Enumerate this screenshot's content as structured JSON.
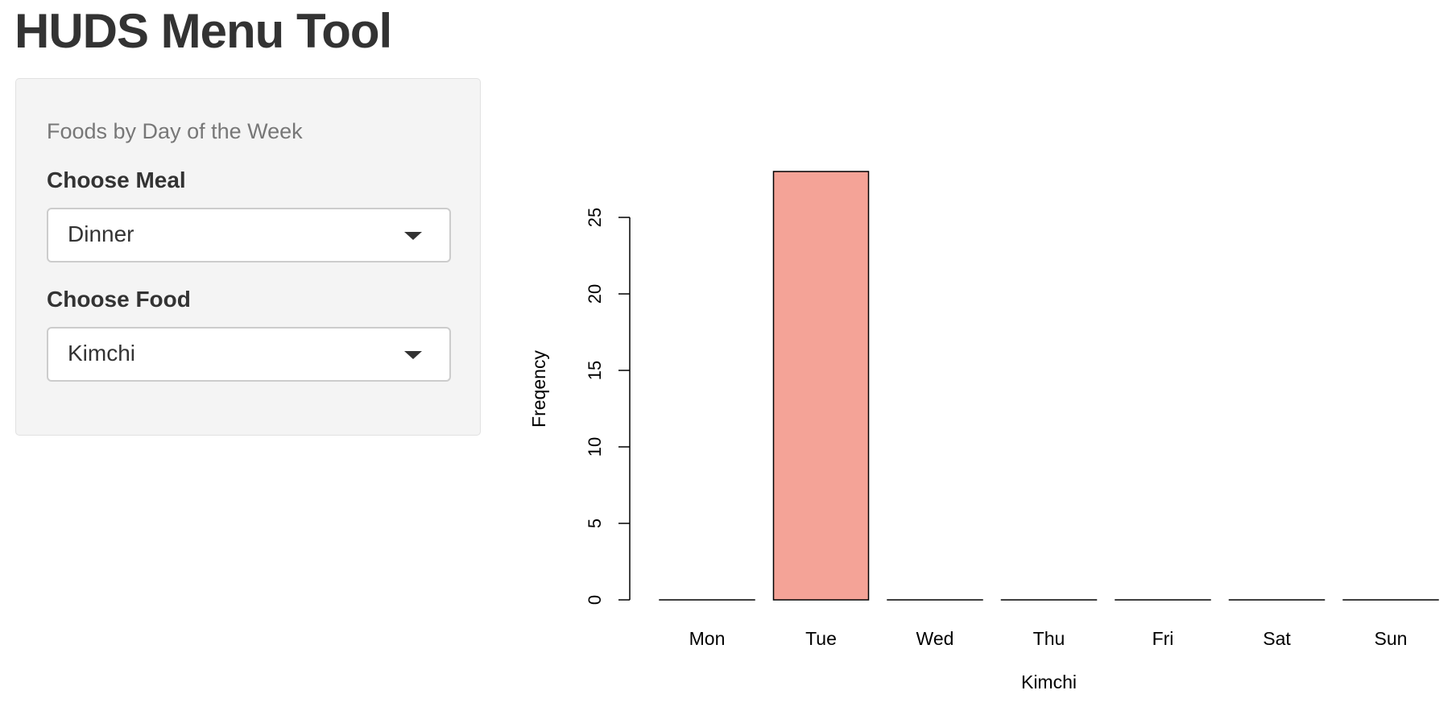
{
  "app": {
    "title": "HUDS Menu Tool"
  },
  "sidebar": {
    "heading": "Foods by Day of the Week",
    "meal": {
      "label": "Choose Meal",
      "value": "Dinner"
    },
    "food": {
      "label": "Choose Food",
      "value": "Kimchi"
    }
  },
  "chart_data": {
    "type": "bar",
    "categories": [
      "Mon",
      "Tue",
      "Wed",
      "Thu",
      "Fri",
      "Sat",
      "Sun"
    ],
    "values": [
      0,
      28,
      0,
      0,
      0,
      0,
      0
    ],
    "xlabel": "Kimchi",
    "ylabel": "Freqency",
    "yticks": [
      0,
      5,
      10,
      15,
      20,
      25
    ],
    "ylim": [
      0,
      28
    ],
    "bar_color": "#f4a397",
    "grid": false,
    "legend": "none"
  }
}
